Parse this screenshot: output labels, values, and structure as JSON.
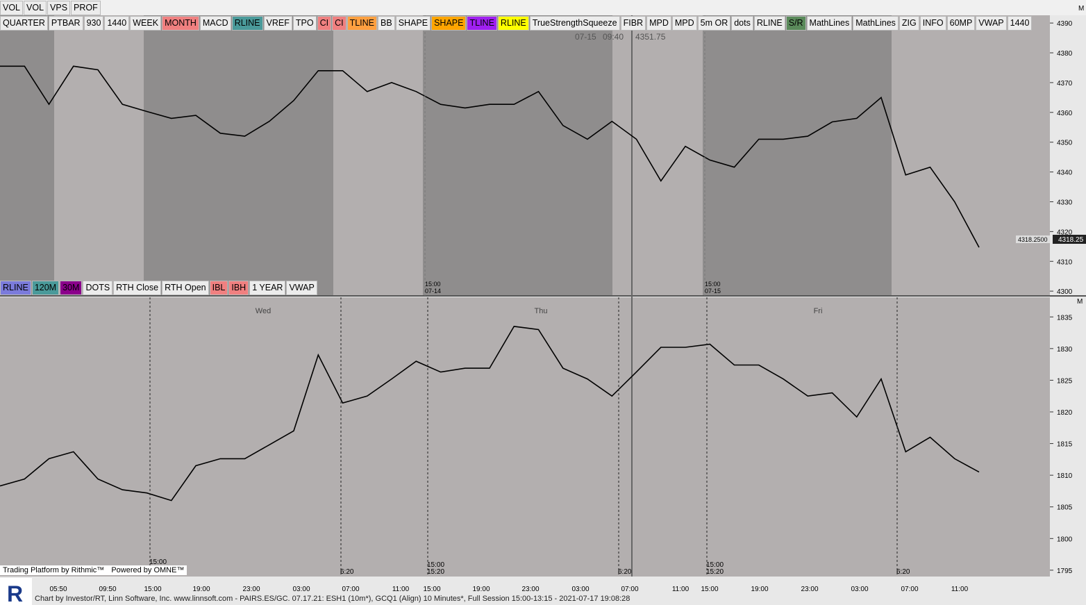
{
  "top_toolbar": [
    "VOL",
    "VOL",
    "VPS",
    "PROF"
  ],
  "logo": "R",
  "toolbar": [
    {
      "label": "QUARTER"
    },
    {
      "label": "PTBAR"
    },
    {
      "label": "930"
    },
    {
      "label": "1440"
    },
    {
      "label": "WEEK"
    },
    {
      "label": "MONTH",
      "color": "#f08080"
    },
    {
      "label": "MACD"
    },
    {
      "label": "RLINE",
      "color": "#4a9a9a"
    },
    {
      "label": "VREF"
    },
    {
      "label": "TPO"
    },
    {
      "label": "CI",
      "color": "#f08080"
    },
    {
      "label": "CI",
      "color": "#f08080"
    },
    {
      "label": "TLINE",
      "color": "#ffa040"
    },
    {
      "label": "BB"
    },
    {
      "label": "SHAPE"
    },
    {
      "label": "SHAPE",
      "color": "#ffa500"
    },
    {
      "label": "TLINE",
      "color": "#a020f0"
    },
    {
      "label": "RLINE",
      "color": "#ffff00"
    },
    {
      "label": "TrueStrengthSqueeze"
    },
    {
      "label": "FIBR"
    },
    {
      "label": "MPD"
    },
    {
      "label": "MPD"
    },
    {
      "label": "5m OR"
    },
    {
      "label": "dots"
    },
    {
      "label": "RLINE"
    },
    {
      "label": "S/R",
      "color": "#5a8a5a"
    },
    {
      "label": "MathLines"
    },
    {
      "label": "MathLines"
    },
    {
      "label": "ZIG"
    },
    {
      "label": "INFO"
    },
    {
      "label": "60MP"
    },
    {
      "label": "VWAP"
    },
    {
      "label": "1440"
    }
  ],
  "panel1": {
    "axis_letter": "M",
    "cursor_date": "07-15",
    "cursor_time": "09:40",
    "cursor_price": "4351.75",
    "last_price_label": "4318.2500",
    "last_price": "4318.25",
    "ylim": [
      4298.4,
      4392.6
    ],
    "yticks": [
      4390,
      4380,
      4370,
      4360,
      4350,
      4340,
      4330,
      4320,
      4310,
      4300
    ],
    "session_labels": [
      {
        "time": "15:00",
        "date": "07-14"
      },
      {
        "time": "15:00",
        "date": "07-15"
      }
    ],
    "color": "#000000",
    "price": [
      4375.5,
      4375.5,
      4362.7,
      4375.5,
      4374.3,
      4362.7,
      4360.3,
      4358,
      4359,
      4353,
      4352,
      4357,
      4364,
      4374,
      4374,
      4367,
      4370,
      4367,
      4362.7,
      4361.5,
      4362.7,
      4362.7,
      4367,
      4355.6,
      4351,
      4357,
      4351,
      4337,
      4348.6,
      4344,
      4341.6,
      4351,
      4351,
      4352,
      4356.8,
      4358,
      4365,
      4339,
      4341.6,
      4330,
      4314.7
    ]
  },
  "panel2": {
    "axis_letter": "M",
    "toolbar": [
      {
        "label": "RLINE",
        "color": "#7b7bdb"
      },
      {
        "label": "120M",
        "color": "#4a9a9a"
      },
      {
        "label": "30M",
        "color": "#8b008b"
      },
      {
        "label": "DOTS"
      },
      {
        "label": "RTH Close"
      },
      {
        "label": "RTH Open"
      },
      {
        "label": "IBL",
        "color": "#f08080"
      },
      {
        "label": "IBH",
        "color": "#f08080"
      },
      {
        "label": "1 YEAR"
      },
      {
        "label": "VWAP"
      }
    ],
    "day_labels": [
      "Wed",
      "Thu",
      "Fri"
    ],
    "ylim": [
      1794,
      1838.1
    ],
    "yticks": [
      1835,
      1830,
      1825,
      1820,
      1815,
      1810,
      1805,
      1800,
      1795
    ],
    "markers": [
      "15:00",
      "6:20",
      "15:00",
      "15:20",
      "6:20",
      "15:00",
      "15:20",
      "6:20"
    ],
    "color": "#000000",
    "price": [
      1808.3,
      1809.4,
      1812.6,
      1813.7,
      1809.4,
      1807.7,
      1807.2,
      1806,
      1811.5,
      1812.6,
      1812.6,
      1814.8,
      1817,
      1829,
      1821.4,
      1822.5,
      1825.2,
      1828,
      1826.3,
      1826.9,
      1826.9,
      1833.5,
      1833,
      1826.9,
      1825.2,
      1822.5,
      1826.3,
      1830.2,
      1830.2,
      1830.7,
      1827.4,
      1827.4,
      1825.2,
      1822.5,
      1823,
      1819.2,
      1825.2,
      1813.7,
      1816,
      1812.6,
      1810.5
    ]
  },
  "x_axis": [
    "05:50",
    "09:50",
    "15:00",
    "19:00",
    "23:00",
    "03:00",
    "07:00",
    "11:00",
    "15:00",
    "19:00",
    "23:00",
    "03:00",
    "07:00",
    "11:00",
    "15:00",
    "19:00",
    "23:00",
    "03:00",
    "07:00",
    "11:00"
  ],
  "branding": [
    "Trading Platform by Rithmic™",
    "Powered by OMNE™"
  ],
  "footer": "Chart by Investor/RT, Linn Software, Inc. www.linnsoft.com - PAIRS.ES/GC.   07.17.21: ESH1 (10m*), GCQ1 (Align) 10 Minutes*, Full Session 15:00-13:15 - 2021-07-17 19:08:28"
}
